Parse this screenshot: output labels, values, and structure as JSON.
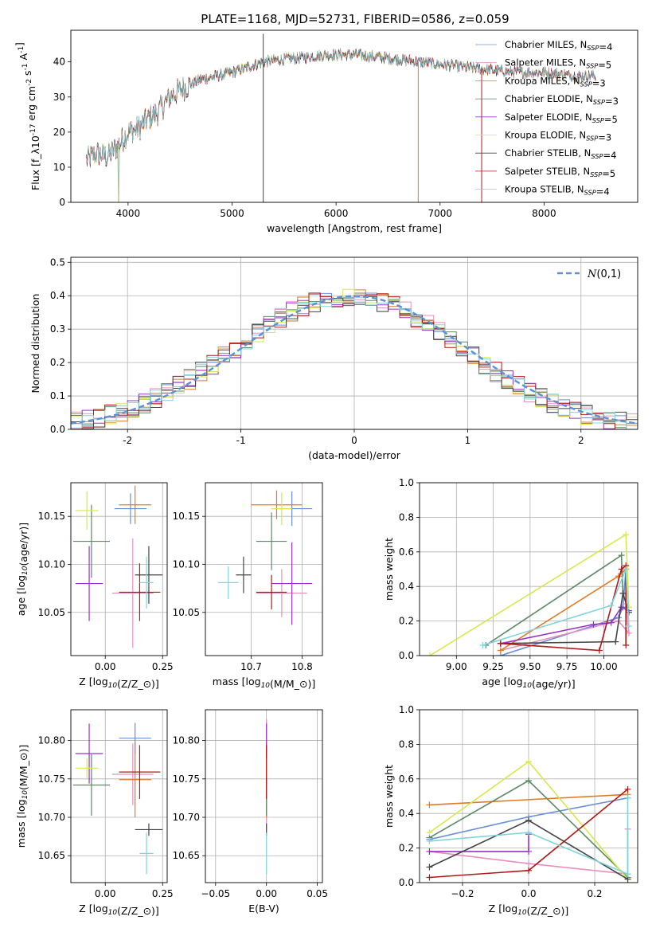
{
  "figure_title": "PLATE=1168, MJD=52731, FIBERID=0586, z=0.059",
  "series_colors": [
    "#6a8fd8",
    "#e88fbf",
    "#e07b24",
    "#5b8a63",
    "#9b30c8",
    "#d8e84a",
    "#454545",
    "#b01818",
    "#80d4da"
  ],
  "legend_spectrum": [
    {
      "label": "Chabrier MILES, N$_{SSP}$=4",
      "color": "#6a8fd8"
    },
    {
      "label": "Salpeter MILES, N$_{SSP}$=5",
      "color": "#e88fbf"
    },
    {
      "label": "Kroupa MILES, N$_{SSP}$=3",
      "color": "#e07b24"
    },
    {
      "label": "Chabrier ELODIE, N$_{SSP}$=3",
      "color": "#5b8a63"
    },
    {
      "label": "Salpeter ELODIE, N$_{SSP}$=5",
      "color": "#9b30c8"
    },
    {
      "label": "Kroupa ELODIE, N$_{SSP}$=3",
      "color": "#d8e84a"
    },
    {
      "label": "Chabrier STELIB, N$_{SSP}$=4",
      "color": "#454545"
    },
    {
      "label": "Salpeter STELIB, N$_{SSP}$=5",
      "color": "#b01818"
    },
    {
      "label": "Kroupa STELIB, N$_{SSP}$=4",
      "color": "#80d4da"
    }
  ],
  "chart_data": [
    {
      "type": "line",
      "panel": "spectrum",
      "xlabel": "wavelength [Angstrom, rest frame]",
      "ylabel": "Flux [f$_\\lambda$10$^{-17}$ erg cm$^{-2}$ s$^{-1}$ A$^{-1}$]",
      "xlim": [
        3450,
        8900
      ],
      "ylim": [
        0,
        49
      ],
      "xticks": [
        4000,
        5000,
        6000,
        7000,
        8000
      ],
      "yticks": [
        0,
        10,
        20,
        30,
        40
      ],
      "grid": false,
      "legend_placement": "upper right",
      "continuum_x": [
        3600,
        3700,
        3800,
        3900,
        4000,
        4100,
        4200,
        4300,
        4400,
        4500,
        4700,
        5000,
        5300,
        5600,
        5900,
        6200,
        6500,
        6800,
        7100,
        7400,
        7700,
        8000,
        8300,
        8500
      ],
      "continuum_y": [
        12,
        14,
        13,
        16,
        20,
        21,
        24,
        26,
        30,
        32,
        35,
        37,
        40,
        41,
        42,
        42,
        41,
        40,
        39,
        38,
        37,
        37,
        36,
        36
      ],
      "spike_wavelengths": [
        3910,
        5300,
        6790,
        7400
      ]
    },
    {
      "type": "line",
      "panel": "residual histogram",
      "xlabel": "(data-model)/error",
      "ylabel": "Normed distribution",
      "xlim": [
        -2.5,
        2.5
      ],
      "ylim": [
        0,
        0.515
      ],
      "xticks": [
        -2,
        -1,
        0,
        1,
        2
      ],
      "yticks": [
        0.0,
        0.1,
        0.2,
        0.3,
        0.4,
        0.5
      ],
      "grid": true,
      "legend_placement": "upper right",
      "gaussian_label": "$\\mathcal{N}(0,1)$",
      "gaussian_color": "#5b8fd6",
      "histogram_bin_width": 0.1
    },
    {
      "type": "scatter",
      "panel": "age vs Z",
      "xlabel": "Z [log$_{10}$(Z/Z$_\\odot$)]",
      "ylabel": "age  [log$_{10}$(age/yr)]",
      "xlim": [
        -0.15,
        0.27
      ],
      "ylim": [
        10.005,
        10.185
      ],
      "xticks": [
        -0.0,
        0.25
      ],
      "yticks": [
        10.05,
        10.1,
        10.15
      ],
      "grid": true,
      "points": [
        {
          "x": 0.11,
          "y": 10.158,
          "xerr": 0.07,
          "yerr": 0.016
        },
        {
          "x": 0.12,
          "y": 10.07,
          "xerr": 0.09,
          "yerr": 0.057
        },
        {
          "x": 0.13,
          "y": 10.162,
          "xerr": 0.07,
          "yerr": 0.02
        },
        {
          "x": -0.06,
          "y": 10.124,
          "xerr": 0.08,
          "yerr": 0.038
        },
        {
          "x": -0.07,
          "y": 10.08,
          "xerr": 0.06,
          "yerr": 0.039
        },
        {
          "x": -0.08,
          "y": 10.156,
          "xerr": 0.05,
          "yerr": 0.02
        },
        {
          "x": 0.19,
          "y": 10.089,
          "xerr": 0.06,
          "yerr": 0.03
        },
        {
          "x": 0.15,
          "y": 10.071,
          "xerr": 0.09,
          "yerr": 0.03
        },
        {
          "x": 0.18,
          "y": 10.081,
          "xerr": 0.03,
          "yerr": 0.027
        }
      ]
    },
    {
      "type": "scatter",
      "panel": "age vs mass",
      "xlabel": "mass [log$_{10}$(M/M$_\\odot$)]",
      "ylabel": "",
      "xlim": [
        10.61,
        10.84
      ],
      "ylim": [
        10.005,
        10.185
      ],
      "xticks": [
        10.7,
        10.8
      ],
      "yticks": [
        10.05,
        10.1,
        10.15
      ],
      "grid": true,
      "points": [
        {
          "x": 10.78,
          "y": 10.158,
          "xerr": 0.04,
          "yerr": 0.018
        },
        {
          "x": 10.76,
          "y": 10.07,
          "xerr": 0.05,
          "yerr": 0.025
        },
        {
          "x": 10.75,
          "y": 10.162,
          "xerr": 0.05,
          "yerr": 0.015
        },
        {
          "x": 10.74,
          "y": 10.124,
          "xerr": 0.03,
          "yerr": 0.03
        },
        {
          "x": 10.78,
          "y": 10.08,
          "xerr": 0.04,
          "yerr": 0.043
        },
        {
          "x": 10.76,
          "y": 10.158,
          "xerr": 0.02,
          "yerr": 0.017
        },
        {
          "x": 10.685,
          "y": 10.089,
          "xerr": 0.015,
          "yerr": 0.019
        },
        {
          "x": 10.74,
          "y": 10.071,
          "xerr": 0.03,
          "yerr": 0.018
        },
        {
          "x": 10.655,
          "y": 10.081,
          "xerr": 0.02,
          "yerr": 0.017
        }
      ]
    },
    {
      "type": "line",
      "panel": "mass weight vs age",
      "xlabel": "age  [log$_{10}$(age/yr)]",
      "ylabel": "mass weight",
      "xlim": [
        8.75,
        10.23
      ],
      "ylim": [
        0,
        1
      ],
      "xticks": [
        9.0,
        9.25,
        9.5,
        9.75,
        10.0
      ],
      "yticks": [
        0.0,
        0.2,
        0.4,
        0.6,
        0.8,
        1.0
      ],
      "grid": true,
      "series": [
        {
          "x": [
            9.3,
            10.1,
            10.13,
            10.15
          ],
          "y": [
            0.0,
            0.22,
            0.28,
            0.5
          ]
        },
        {
          "x": [
            9.3,
            10.0,
            10.1,
            10.17,
            10.15
          ],
          "y": [
            0.03,
            0.18,
            0.2,
            0.13,
            0.3
          ]
        },
        {
          "x": [
            9.3,
            10.1,
            10.15
          ],
          "y": [
            0.03,
            0.46,
            0.5
          ]
        },
        {
          "x": [
            9.2,
            10.12,
            10.13
          ],
          "y": [
            0.06,
            0.58,
            0.36
          ]
        },
        {
          "x": [
            9.3,
            9.93,
            10.05,
            10.12,
            10.17
          ],
          "y": [
            0.07,
            0.18,
            0.19,
            0.28,
            0.26
          ]
        },
        {
          "x": [
            8.82,
            10.15,
            10.17
          ],
          "y": [
            0.0,
            0.7,
            0.28
          ]
        },
        {
          "x": [
            9.3,
            10.08,
            10.13,
            10.17
          ],
          "y": [
            0.07,
            0.08,
            0.36,
            0.25
          ]
        },
        {
          "x": [
            9.3,
            9.97,
            10.12,
            10.15,
            10.15
          ],
          "y": [
            0.07,
            0.03,
            0.5,
            0.52,
            0.06
          ]
        },
        {
          "x": [
            9.18,
            10.05,
            10.15,
            10.17
          ],
          "y": [
            0.06,
            0.29,
            0.5,
            0.17
          ]
        }
      ]
    },
    {
      "type": "scatter",
      "panel": "mass vs Z",
      "xlabel": "Z [log$_{10}$(Z/Z$_\\odot$)]",
      "ylabel": "mass [log$_{10}$(M/M$_\\odot$)]",
      "xlim": [
        -0.15,
        0.27
      ],
      "ylim": [
        10.615,
        10.84
      ],
      "xticks": [
        -0.0,
        0.25
      ],
      "yticks": [
        10.65,
        10.7,
        10.75,
        10.8
      ],
      "grid": true,
      "points": [
        {
          "x": 0.13,
          "y": 10.803,
          "xerr": 0.07,
          "yerr": 0.02
        },
        {
          "x": 0.12,
          "y": 10.756,
          "xerr": 0.09,
          "yerr": 0.04
        },
        {
          "x": 0.13,
          "y": 10.749,
          "xerr": 0.07,
          "yerr": 0.049
        },
        {
          "x": -0.06,
          "y": 10.742,
          "xerr": 0.08,
          "yerr": 0.04
        },
        {
          "x": -0.07,
          "y": 10.783,
          "xerr": 0.06,
          "yerr": 0.039
        },
        {
          "x": -0.08,
          "y": 10.764,
          "xerr": 0.05,
          "yerr": 0.013
        },
        {
          "x": 0.19,
          "y": 10.684,
          "xerr": 0.06,
          "yerr": 0.008
        },
        {
          "x": 0.15,
          "y": 10.759,
          "xerr": 0.09,
          "yerr": 0.035
        },
        {
          "x": 0.18,
          "y": 10.653,
          "xerr": 0.03,
          "yerr": 0.027
        }
      ]
    },
    {
      "type": "scatter",
      "panel": "mass vs E(B-V)",
      "xlabel": "E(B-V)",
      "ylabel": "",
      "xlim": [
        -0.06,
        0.055
      ],
      "ylim": [
        10.615,
        10.84
      ],
      "xticks": [
        -0.05,
        0.0,
        0.05
      ],
      "yticks": [
        10.65,
        10.7,
        10.75,
        10.8
      ],
      "grid": true,
      "points": [
        {
          "x": 0,
          "y": 10.803,
          "xerr": 0,
          "yerr": 0.02
        },
        {
          "x": 0,
          "y": 10.756,
          "xerr": 0,
          "yerr": 0.072
        },
        {
          "x": 0,
          "y": 10.749,
          "xerr": 0,
          "yerr": 0.049
        },
        {
          "x": 0,
          "y": 10.742,
          "xerr": 0,
          "yerr": 0.04
        },
        {
          "x": 0,
          "y": 10.783,
          "xerr": 0,
          "yerr": 0.039
        },
        {
          "x": 0,
          "y": 10.764,
          "xerr": 0,
          "yerr": 0.013
        },
        {
          "x": 0,
          "y": 10.684,
          "xerr": 0,
          "yerr": 0.008
        },
        {
          "x": 0,
          "y": 10.759,
          "xerr": 0,
          "yerr": 0.035
        },
        {
          "x": 0,
          "y": 10.653,
          "xerr": 0,
          "yerr": 0.027
        }
      ]
    },
    {
      "type": "line",
      "panel": "mass weight vs Z",
      "xlabel": "Z [log$_{10}$(Z/Z$_\\odot$)]",
      "ylabel": "mass weight",
      "xlim": [
        -0.33,
        0.33
      ],
      "ylim": [
        0,
        1
      ],
      "xticks": [
        -0.2,
        0.0,
        0.2
      ],
      "yticks": [
        0.0,
        0.2,
        0.4,
        0.6,
        0.8,
        1.0
      ],
      "grid": true,
      "series": [
        {
          "x": [
            -0.3,
            0.0,
            0.3
          ],
          "y": [
            0.25,
            0.38,
            0.49
          ]
        },
        {
          "x": [
            -0.3,
            0.0,
            0.3,
            0.3
          ],
          "y": [
            0.18,
            0.11,
            0.05,
            0.31
          ]
        },
        {
          "x": [
            -0.3,
            0.3
          ],
          "y": [
            0.45,
            0.51
          ]
        },
        {
          "x": [
            -0.3,
            0.0,
            0.3
          ],
          "y": [
            0.26,
            0.59,
            0.03
          ]
        },
        {
          "x": [
            -0.3,
            0.0,
            0.0
          ],
          "y": [
            0.18,
            0.18,
            0.28
          ]
        },
        {
          "x": [
            -0.3,
            0.0,
            0.3
          ],
          "y": [
            0.29,
            0.7,
            0.02
          ]
        },
        {
          "x": [
            -0.3,
            0.0,
            0.3
          ],
          "y": [
            0.09,
            0.36,
            0.02
          ]
        },
        {
          "x": [
            -0.3,
            0.0,
            0.3
          ],
          "y": [
            0.03,
            0.07,
            0.54
          ]
        },
        {
          "x": [
            -0.3,
            0.0,
            0.3,
            0.3
          ],
          "y": [
            0.24,
            0.29,
            0.05,
            0.49
          ]
        }
      ]
    }
  ]
}
